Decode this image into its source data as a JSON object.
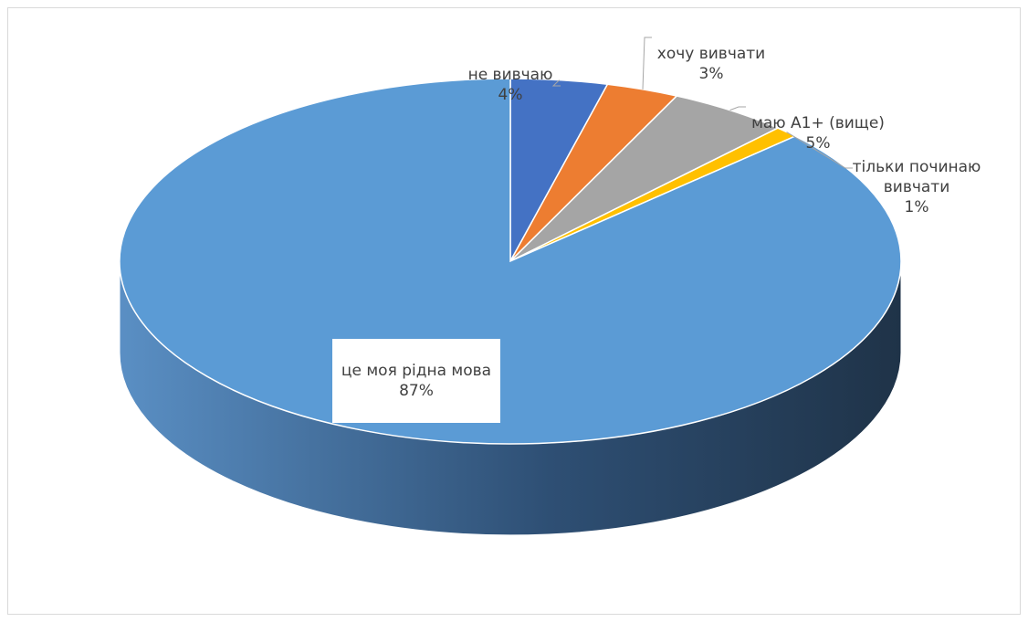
{
  "chart_data": {
    "type": "pie",
    "title": "",
    "categories": [
      "не вивчаю",
      "хочу вивчати",
      "маю А1+ (вище)",
      "тільки починаю вивчати",
      "це моя рідна мова"
    ],
    "values": [
      4,
      3,
      5,
      1,
      87
    ],
    "labels": [
      "4%",
      "3%",
      "5%",
      "1%",
      "87%"
    ],
    "colors": [
      "#4472C4",
      "#ED7D31",
      "#A5A5A5",
      "#FFC000",
      "#5B9BD5"
    ],
    "legend": "none",
    "style": "3d"
  }
}
